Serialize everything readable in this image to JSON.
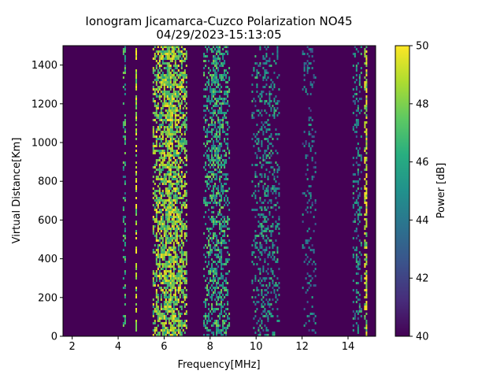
{
  "chart_data": {
    "type": "heatmap",
    "title_line1": "Ionogram Jicamarca-Cuzco Polarization NO45",
    "title_line2": "04/29/2023-15:13:05",
    "xlabel": "Frequency[MHz]",
    "ylabel": "Virtual Distance[Km]",
    "xlim": [
      1.6,
      15.2
    ],
    "ylim": [
      0,
      1500
    ],
    "xticks": [
      2,
      4,
      6,
      8,
      10,
      12,
      14
    ],
    "yticks": [
      0,
      200,
      400,
      600,
      800,
      1000,
      1200,
      1400
    ],
    "colorbar": {
      "label": "Power [dB]",
      "range": [
        40,
        50
      ],
      "ticks": [
        40,
        42,
        44,
        46,
        48,
        50
      ],
      "colormap": "viridis"
    },
    "grid": false,
    "features": [
      {
        "x_range": [
          5.5,
          7.0
        ],
        "y_range": [
          0,
          1500
        ],
        "level": "high"
      },
      {
        "x_range": [
          7.7,
          8.8
        ],
        "y_range": [
          0,
          1500
        ],
        "level": "medium-high"
      },
      {
        "x_range": [
          9.8,
          11.0
        ],
        "y_range": [
          0,
          1500
        ],
        "level": "medium"
      },
      {
        "x_range": [
          12.0,
          12.6
        ],
        "y_range": [
          0,
          1500
        ],
        "level": "medium-low"
      },
      {
        "x_range": [
          14.2,
          14.6
        ],
        "y_range": [
          0,
          1500
        ],
        "level": "medium"
      },
      {
        "x_range": [
          14.7,
          14.8
        ],
        "y_range": [
          0,
          1500
        ],
        "level": "high-line"
      },
      {
        "x_range": [
          4.2,
          4.3
        ],
        "y_range": [
          0,
          1500
        ],
        "level": "medium-line"
      },
      {
        "x_range": [
          4.75,
          4.8
        ],
        "y_range": [
          0,
          1500
        ],
        "level": "high-line"
      }
    ]
  }
}
